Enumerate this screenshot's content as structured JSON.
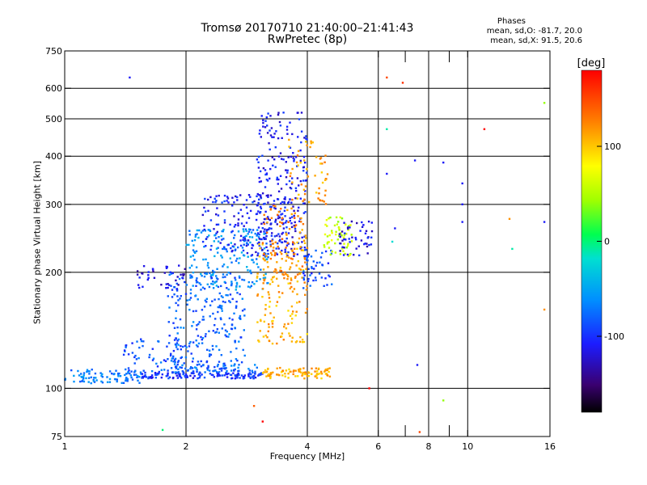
{
  "chart_data": {
    "type": "scatter",
    "title": "Tromsø 20170710 21:40:00–21:41:43",
    "subtitle": "RwPretec (8p)",
    "xlabel": "Frequency [MHz]",
    "ylabel": "Stationary phase Virtual Height [km]",
    "x_scale": "log",
    "y_scale": "log",
    "xlim": [
      1,
      16
    ],
    "ylim": [
      75,
      750
    ],
    "x_ticks": [
      1,
      2,
      4,
      6,
      8,
      10,
      16
    ],
    "x_tick_labels": [
      "1",
      "2",
      "4",
      "6",
      "8",
      "10",
      "16"
    ],
    "x_gridlines": [
      2,
      4,
      6,
      8,
      10
    ],
    "x_minor_ticks": [
      7,
      9
    ],
    "y_ticks": [
      75,
      100,
      200,
      300,
      400,
      500,
      600,
      750
    ],
    "y_tick_labels": [
      "75",
      "100",
      "200",
      "300",
      "400",
      "500",
      "600",
      "750"
    ],
    "grid": true,
    "legend": {
      "title": "Phases",
      "line_o": "mean, sd,O: -81.7, 20.0",
      "line_x": "mean, sd,X:  91.5, 20.6",
      "placement": "top-right"
    },
    "colorbar": {
      "label": "[deg]",
      "range": [
        -180,
        180
      ],
      "ticks": [
        -100,
        0,
        100
      ],
      "tick_labels": [
        "-100",
        "0",
        "100"
      ],
      "colormap": "rainbow"
    },
    "point_clusters": [
      {
        "f": [
          1.0,
          1.55
        ],
        "h": [
          103,
          112
        ],
        "phase": -70,
        "n": 90
      },
      {
        "f": [
          1.55,
          3.1
        ],
        "h": [
          106,
          110
        ],
        "phase": -100,
        "n": 140
      },
      {
        "f": [
          1.85,
          3.1
        ],
        "h": [
          110,
          116
        ],
        "phase": -75,
        "n": 50
      },
      {
        "f": [
          3.1,
          4.6
        ],
        "h": [
          106,
          113
        ],
        "phase": 110,
        "n": 90
      },
      {
        "f": [
          1.4,
          2.0
        ],
        "h": [
          110,
          135
        ],
        "phase": -85,
        "n": 60
      },
      {
        "f": [
          1.8,
          2.8
        ],
        "h": [
          110,
          200
        ],
        "phase": -80,
        "n": 260
      },
      {
        "f": [
          2.0,
          3.2
        ],
        "h": [
          180,
          260
        ],
        "phase": -60,
        "n": 180
      },
      {
        "f": [
          2.2,
          3.6
        ],
        "h": [
          220,
          320
        ],
        "phase": -105,
        "n": 180
      },
      {
        "f": [
          3.0,
          4.0
        ],
        "h": [
          220,
          520
        ],
        "phase": -110,
        "n": 230
      },
      {
        "f": [
          3.0,
          4.0
        ],
        "h": [
          130,
          240
        ],
        "phase": 110,
        "n": 140
      },
      {
        "f": [
          3.1,
          4.0
        ],
        "h": [
          190,
          300
        ],
        "phase": 125,
        "n": 90
      },
      {
        "f": [
          3.6,
          4.5
        ],
        "h": [
          300,
          450
        ],
        "phase": 115,
        "n": 55
      },
      {
        "f": [
          3.9,
          4.6
        ],
        "h": [
          180,
          230
        ],
        "phase": -90,
        "n": 50
      },
      {
        "f": [
          4.4,
          5.2
        ],
        "h": [
          220,
          280
        ],
        "phase": 55,
        "n": 60
      },
      {
        "f": [
          4.8,
          5.8
        ],
        "h": [
          220,
          275
        ],
        "phase": -115,
        "n": 50
      },
      {
        "f": [
          1.5,
          2.0
        ],
        "h": [
          180,
          210
        ],
        "phase": -120,
        "n": 40
      }
    ],
    "isolated_points": [
      {
        "f": 1.45,
        "h": 640,
        "phase": -110
      },
      {
        "f": 1.75,
        "h": 78,
        "phase": 0
      },
      {
        "f": 6.3,
        "h": 640,
        "phase": 150
      },
      {
        "f": 6.9,
        "h": 620,
        "phase": 160
      },
      {
        "f": 6.3,
        "h": 470,
        "phase": -10
      },
      {
        "f": 6.3,
        "h": 360,
        "phase": -110
      },
      {
        "f": 7.4,
        "h": 390,
        "phase": -110
      },
      {
        "f": 8.7,
        "h": 385,
        "phase": -110
      },
      {
        "f": 9.7,
        "h": 340,
        "phase": -110
      },
      {
        "f": 9.7,
        "h": 300,
        "phase": -110
      },
      {
        "f": 9.7,
        "h": 270,
        "phase": -110
      },
      {
        "f": 11.0,
        "h": 470,
        "phase": 180
      },
      {
        "f": 12.7,
        "h": 275,
        "phase": 120
      },
      {
        "f": 12.9,
        "h": 230,
        "phase": -10
      },
      {
        "f": 15.5,
        "h": 550,
        "phase": 40
      },
      {
        "f": 15.5,
        "h": 270,
        "phase": -110
      },
      {
        "f": 15.5,
        "h": 160,
        "phase": 120
      },
      {
        "f": 7.5,
        "h": 115,
        "phase": -110
      },
      {
        "f": 7.6,
        "h": 77,
        "phase": 150
      },
      {
        "f": 8.7,
        "h": 93,
        "phase": 40
      },
      {
        "f": 6.5,
        "h": 240,
        "phase": -20
      },
      {
        "f": 6.6,
        "h": 260,
        "phase": -110
      },
      {
        "f": 5.7,
        "h": 100,
        "phase": 180
      },
      {
        "f": 3.1,
        "h": 82,
        "phase": 180
      },
      {
        "f": 2.95,
        "h": 90,
        "phase": 140
      }
    ]
  }
}
